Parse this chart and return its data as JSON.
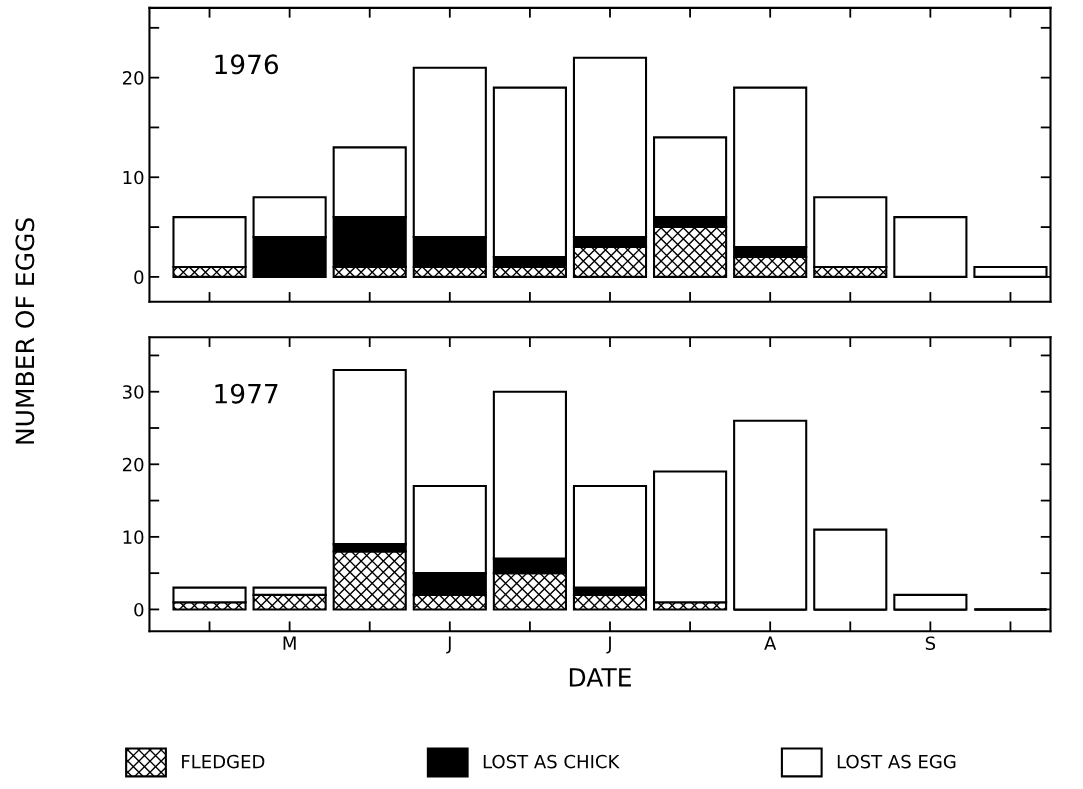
{
  "chart_data": [
    {
      "type": "bar",
      "title": "1976",
      "ylabel": "NUMBER OF EGGS",
      "stacked": true,
      "tick_labels": "y",
      "legend": "bottom",
      "categories": [
        null,
        null,
        null,
        null,
        null,
        null,
        null,
        null,
        null,
        null,
        null
      ],
      "series": [
        {
          "name": "FLEDGED",
          "color": "#000000",
          "values": [
            1,
            0,
            1,
            1,
            1,
            3,
            5,
            2,
            1,
            0,
            0
          ]
        },
        {
          "name": "LOST AS CHICK",
          "color": "#000000",
          "values": [
            0,
            4,
            5,
            3,
            1,
            1,
            1,
            1,
            0,
            0,
            0
          ]
        },
        {
          "name": "LOST AS EGG",
          "color": "#ffffff",
          "values": [
            5,
            4,
            7,
            17,
            17,
            18,
            8,
            16,
            7,
            6,
            1
          ]
        }
      ],
      "ylim": [
        -2.5,
        27
      ],
      "yticks": [
        0,
        {
          "value": 5,
          "label": null
        },
        10,
        {
          "value": 15,
          "label": null
        },
        20,
        {
          "value": 25,
          "label": null
        }
      ],
      "grid": false
    },
    {
      "type": "bar",
      "title": "1977",
      "xlabel": "DATE",
      "stacked": true,
      "categories": [
        null,
        "M",
        null,
        "J",
        null,
        "J",
        null,
        "A",
        null,
        "S",
        null
      ],
      "series": [
        {
          "color": "#000000",
          "values": [
            1,
            2,
            8,
            2,
            5,
            2,
            1,
            0,
            0,
            0,
            0
          ]
        },
        {
          "color": "#000000",
          "values": [
            0,
            0,
            1,
            3,
            2,
            1,
            0,
            0,
            0,
            0,
            0
          ]
        },
        {
          "color": "#ffffff",
          "values": [
            2,
            1,
            24,
            12,
            23,
            14,
            18,
            26,
            11,
            2,
            0
          ]
        }
      ],
      "ylim": [
        -3,
        37.5
      ],
      "yticks": [
        0,
        {
          "value": 5,
          "label": null
        },
        10,
        {
          "value": 15,
          "label": null
        },
        20,
        {
          "value": 25,
          "label": null
        },
        30,
        {
          "value": 35,
          "label": null
        }
      ],
      "grid": false
    }
  ]
}
